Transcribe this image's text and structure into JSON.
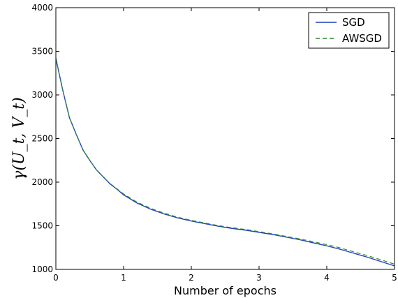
{
  "chart_data": {
    "type": "line",
    "xlabel": "Number of epochs",
    "ylabel": "γ(U_t, V_t)",
    "xlim": [
      0,
      5
    ],
    "ylim": [
      1000,
      4000
    ],
    "x_ticks": [
      "0",
      "1",
      "2",
      "3",
      "4",
      "5"
    ],
    "y_ticks": [
      "1000",
      "1500",
      "2000",
      "2500",
      "3000",
      "3500",
      "4000"
    ],
    "grid": false,
    "legend_position": "top-right",
    "x": [
      0,
      0.1,
      0.2,
      0.3,
      0.4,
      0.5,
      0.6,
      0.7,
      0.8,
      0.9,
      1.0,
      1.2,
      1.4,
      1.6,
      1.8,
      2.0,
      2.2,
      2.4,
      2.6,
      2.8,
      3.0,
      3.2,
      3.4,
      3.6,
      3.8,
      4.0,
      4.2,
      4.4,
      4.6,
      4.8,
      5.0
    ],
    "series": [
      {
        "name": "SGD",
        "color": "#1f3fbf",
        "style": "solid",
        "values": [
          3420,
          3060,
          2740,
          2550,
          2370,
          2250,
          2140,
          2060,
          1980,
          1920,
          1855,
          1760,
          1690,
          1635,
          1590,
          1555,
          1525,
          1495,
          1470,
          1450,
          1425,
          1400,
          1370,
          1340,
          1305,
          1270,
          1230,
          1185,
          1140,
          1090,
          1040
        ]
      },
      {
        "name": "AWSGD",
        "color": "#2e8b2e",
        "style": "dashed",
        "values": [
          3420,
          3060,
          2740,
          2550,
          2370,
          2250,
          2140,
          2060,
          1985,
          1925,
          1865,
          1770,
          1700,
          1645,
          1598,
          1562,
          1532,
          1502,
          1478,
          1458,
          1433,
          1408,
          1378,
          1350,
          1317,
          1284,
          1246,
          1201,
          1158,
          1110,
          1060
        ]
      }
    ]
  }
}
